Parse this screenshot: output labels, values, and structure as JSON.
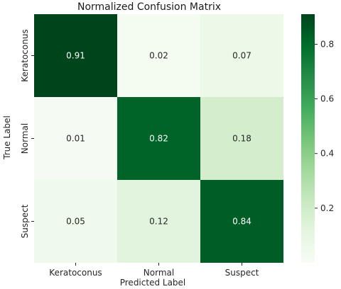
{
  "chart_data": {
    "type": "heatmap",
    "title": "Normalized Confusion Matrix",
    "xlabel": "Predicted Label",
    "ylabel": "True Label",
    "x_categories": [
      "Keratoconus",
      "Normal",
      "Suspect"
    ],
    "y_categories": [
      "Keratoconus",
      "Normal",
      "Suspect"
    ],
    "values": [
      [
        0.91,
        0.02,
        0.07
      ],
      [
        0.01,
        0.82,
        0.18
      ],
      [
        0.05,
        0.12,
        0.84
      ]
    ],
    "colormap": "Greens",
    "colorbar": {
      "range": [
        0.0,
        0.91
      ],
      "ticks": [
        0.2,
        0.4,
        0.6,
        0.8
      ],
      "tick_labels": [
        "0.2",
        "0.4",
        "0.6",
        "0.8"
      ]
    }
  }
}
